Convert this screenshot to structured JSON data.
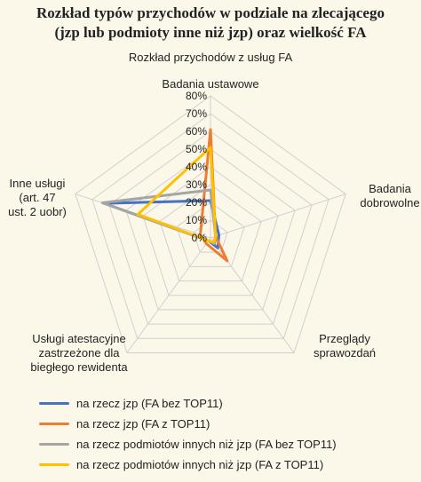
{
  "title": "Rozkład typów przychodów w podziale na zlecającego",
  "title_line2": "(jzp lub podmioty inne niż jzp) oraz wielkość FA",
  "chart_data": {
    "type": "radar",
    "title": "Rozkład typów przychodów w podziale na zlecającego (jzp lub podmioty inne niż jzp) oraz wielkość FA",
    "subtitle": "Rozkład przychodów z usług FA",
    "axes": [
      {
        "label": [
          "Badania ustawowe"
        ]
      },
      {
        "label": [
          "Badania",
          "dobrowolne"
        ]
      },
      {
        "label": [
          "Przeglądy",
          "sprawozdań"
        ]
      },
      {
        "label": [
          "Usługi atestacyjne",
          "zastrzeżone dla",
          "biegłego rewidenta"
        ]
      },
      {
        "label": [
          "Inne usługi",
          "(art. 47",
          "ust. 2 uobr)"
        ]
      }
    ],
    "ticks": [
      "0%",
      "10%",
      "20%",
      "30%",
      "40%",
      "50%",
      "60%",
      "70%",
      "80%"
    ],
    "range": [
      0,
      0.8
    ],
    "grid": true,
    "legend_position": "bottom",
    "series": [
      {
        "name": "na rzecz jzp (FA bez TOP11)",
        "color": "#4472c4",
        "values": [
          0.21,
          0.05,
          0.07,
          0.02,
          0.63
        ]
      },
      {
        "name": "na rzecz jzp (FA z TOP11)",
        "color": "#ed7d31",
        "values": [
          0.61,
          0.03,
          0.16,
          0.04,
          0.06
        ]
      },
      {
        "name": "na rzecz podmiotów innych niż jzp (FA bez TOP11)",
        "color": "#a5a5a5",
        "values": [
          0.27,
          0.03,
          0.04,
          0.02,
          0.64
        ]
      },
      {
        "name": "na rzecz podmiotów innych niż jzp (FA z TOP11)",
        "color": "#ffc000",
        "values": [
          0.51,
          0.03,
          0.03,
          0.02,
          0.43
        ]
      }
    ]
  }
}
